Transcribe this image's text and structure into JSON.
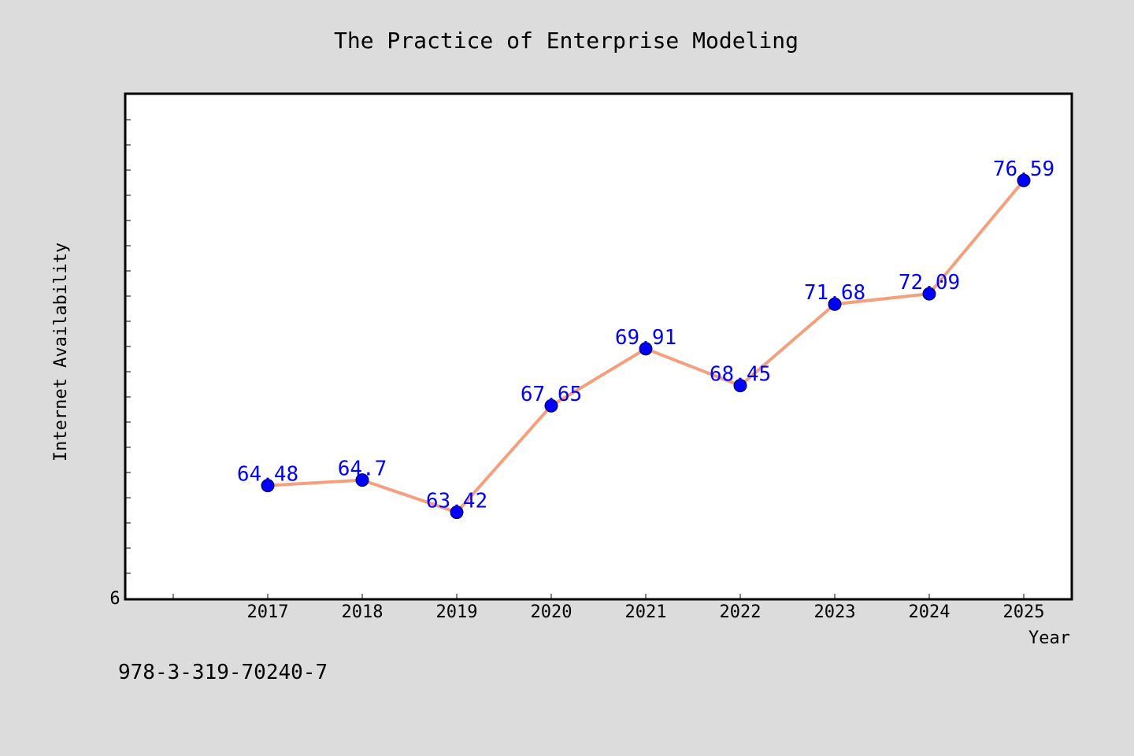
{
  "chart_data": {
    "type": "line",
    "title": "The Practice of Enterprise Modeling",
    "xlabel": "Year",
    "ylabel": "Internet Availability",
    "x": [
      "2017",
      "2018",
      "2019",
      "2020",
      "2021",
      "2022",
      "2023",
      "2024",
      "2025"
    ],
    "series": [
      {
        "values": [
          64.48,
          64.7,
          63.42,
          67.65,
          69.91,
          68.45,
          71.68,
          72.09,
          76.59
        ],
        "labels": [
          "64.48",
          "64.7",
          "63.42",
          "67.65",
          "69.91",
          "68.45",
          "71.68",
          "72.09",
          "76.59"
        ],
        "line_color": "#f4a07f",
        "marker_color": "#0000ff",
        "label_color": "#0000ff"
      }
    ],
    "ylim": [
      60,
      80
    ],
    "y_origin_label": "6",
    "grid": false,
    "footer": "978-3-319-70240-7"
  },
  "colors": {
    "background": "#dcdcdc",
    "plot_background": "#ffffff",
    "axis": "#000000"
  }
}
